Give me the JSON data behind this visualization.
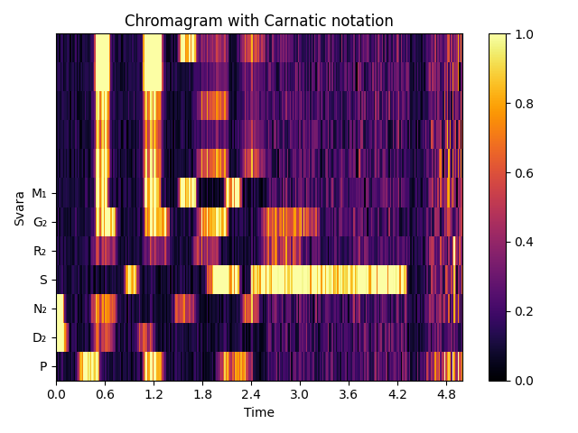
{
  "title": "Chromagram with Carnatic notation",
  "xlabel": "Time",
  "ylabel": "Svara",
  "ytick_labels": [
    "P",
    "D₂",
    "N₂",
    "S",
    "R₂",
    "G₂",
    "M₁"
  ],
  "ytick_positions": [
    0.5,
    1.5,
    2.5,
    3.5,
    4.5,
    5.5,
    6.5
  ],
  "xtick_values": [
    0,
    0.6,
    1.2,
    1.8,
    2.4,
    3.0,
    3.6,
    4.2,
    4.8
  ],
  "colormap": "inferno",
  "vmin": 0.0,
  "vmax": 1.0,
  "n_rows": 12,
  "n_cols": 300,
  "time_max": 5.0,
  "seed": 7,
  "figsize": [
    6.4,
    4.8
  ],
  "dpi": 100
}
